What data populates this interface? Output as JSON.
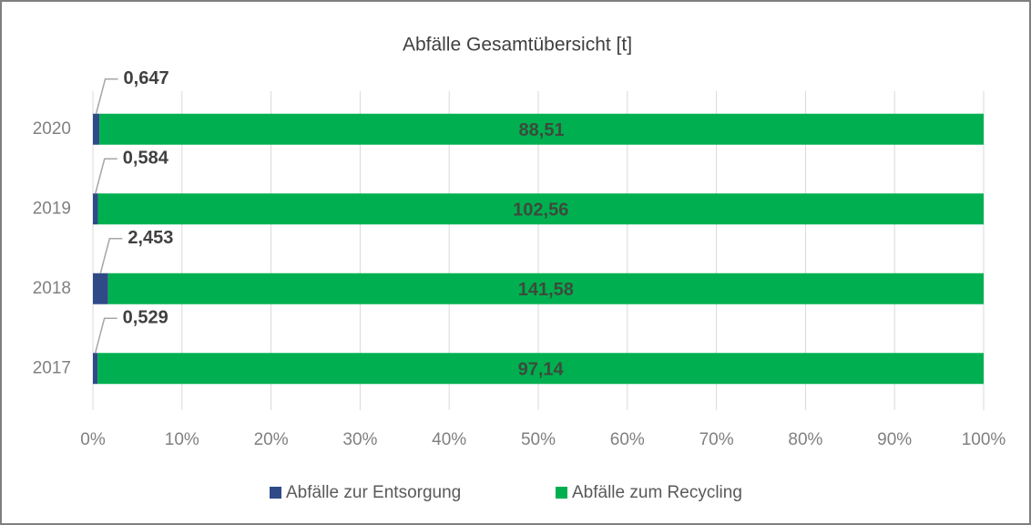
{
  "chart_data": {
    "type": "bar",
    "orientation": "horizontal",
    "stacking": "percent",
    "title": "Abfälle Gesamtübersicht [t]",
    "categories": [
      "2020",
      "2019",
      "2018",
      "2017"
    ],
    "series": [
      {
        "name": "Abfälle zur Entsorgung",
        "color": "#2f4a87",
        "values": [
          0.647,
          0.584,
          2.453,
          0.529
        ],
        "value_labels": [
          "0,647",
          "0,584",
          "2,453",
          "0,529"
        ]
      },
      {
        "name": "Abfälle zum Recycling",
        "color": "#00b050",
        "values": [
          88.51,
          102.56,
          141.58,
          97.14
        ],
        "value_labels": [
          "88,51",
          "102,56",
          "141,58",
          "97,14"
        ]
      }
    ],
    "xlim": [
      0,
      100
    ],
    "xticks": [
      {
        "value": 0,
        "label": "0%"
      },
      {
        "value": 10,
        "label": "10%"
      },
      {
        "value": 20,
        "label": "20%"
      },
      {
        "value": 30,
        "label": "30%"
      },
      {
        "value": 40,
        "label": "40%"
      },
      {
        "value": 50,
        "label": "50%"
      },
      {
        "value": 60,
        "label": "60%"
      },
      {
        "value": 70,
        "label": "70%"
      },
      {
        "value": 80,
        "label": "80%"
      },
      {
        "value": 90,
        "label": "90%"
      },
      {
        "value": 100,
        "label": "100%"
      }
    ],
    "grid": true,
    "legend": "bottom"
  }
}
